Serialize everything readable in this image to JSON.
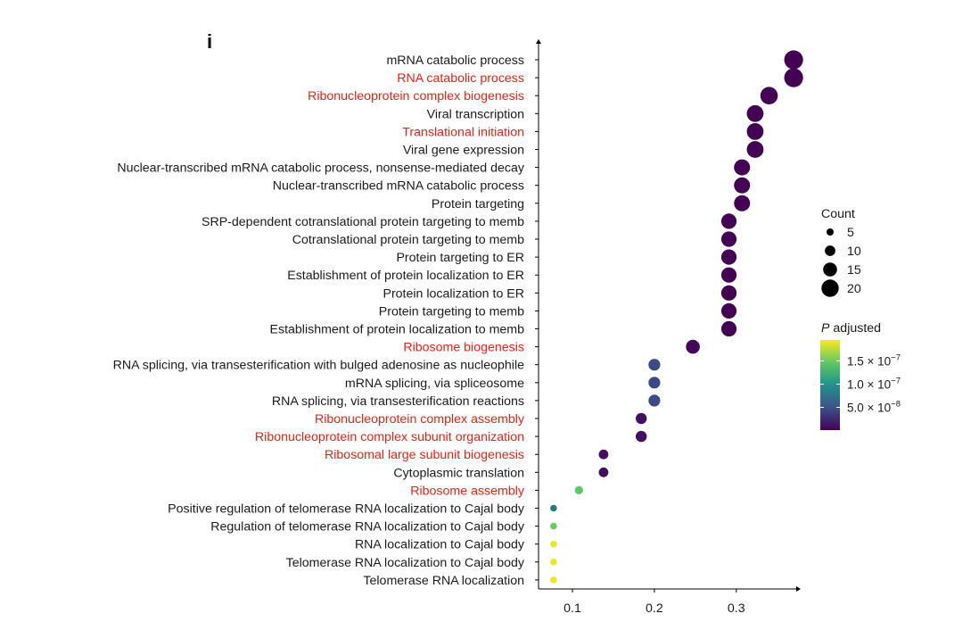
{
  "panel_label": "i",
  "chart_data": {
    "type": "scatter",
    "title": "",
    "xlabel": "",
    "ylabel": "",
    "xlim": [
      0.065,
      0.39
    ],
    "xticks": [
      0.1,
      0.2,
      0.3
    ],
    "xtick_labels": [
      "0.1",
      "0.2",
      "0.3"
    ],
    "highlight_color": "#e2231a",
    "default_label_color": "#1a1a1a",
    "terms": [
      {
        "label": "mRNA catabolic process",
        "ratio": 0.37,
        "count": 21,
        "padj": 1e-09,
        "highlight": false
      },
      {
        "label": "RNA catabolic process",
        "ratio": 0.37,
        "count": 21,
        "padj": 1e-09,
        "highlight": true
      },
      {
        "label": "Ribonucleoprotein complex biogenesis",
        "ratio": 0.34,
        "count": 19,
        "padj": 2e-09,
        "highlight": true
      },
      {
        "label": "Viral transcription",
        "ratio": 0.323,
        "count": 18,
        "padj": 1e-09,
        "highlight": false
      },
      {
        "label": "Translational initiation",
        "ratio": 0.323,
        "count": 18,
        "padj": 1e-09,
        "highlight": true
      },
      {
        "label": "Viral gene expression",
        "ratio": 0.323,
        "count": 18,
        "padj": 1e-09,
        "highlight": false
      },
      {
        "label": "Nuclear-transcribed mRNA catabolic process, nonsense-mediated decay",
        "ratio": 0.307,
        "count": 17,
        "padj": 1e-09,
        "highlight": false
      },
      {
        "label": "Nuclear-transcribed mRNA catabolic process",
        "ratio": 0.307,
        "count": 17,
        "padj": 1e-09,
        "highlight": false
      },
      {
        "label": "Protein targeting",
        "ratio": 0.307,
        "count": 17,
        "padj": 1e-09,
        "highlight": false
      },
      {
        "label": "SRP-dependent cotranslational protein targeting to memb",
        "ratio": 0.291,
        "count": 16,
        "padj": 1e-09,
        "highlight": false
      },
      {
        "label": "Cotranslational protein targeting to memb",
        "ratio": 0.291,
        "count": 16,
        "padj": 1e-09,
        "highlight": false
      },
      {
        "label": "Protein targeting to ER",
        "ratio": 0.291,
        "count": 16,
        "padj": 1e-09,
        "highlight": false
      },
      {
        "label": "Establishment of protein localization to ER",
        "ratio": 0.291,
        "count": 16,
        "padj": 1e-09,
        "highlight": false
      },
      {
        "label": "Protein localization to ER",
        "ratio": 0.291,
        "count": 16,
        "padj": 1e-09,
        "highlight": false
      },
      {
        "label": "Protein targeting to memb",
        "ratio": 0.291,
        "count": 16,
        "padj": 1e-09,
        "highlight": false
      },
      {
        "label": "Establishment of protein localization to memb",
        "ratio": 0.291,
        "count": 16,
        "padj": 1e-09,
        "highlight": false
      },
      {
        "label": "Ribosome biogenesis",
        "ratio": 0.247,
        "count": 14,
        "padj": 5e-09,
        "highlight": true
      },
      {
        "label": "RNA splicing, via transesterification with bulged adenosine as nucleophile",
        "ratio": 0.2,
        "count": 11,
        "padj": 4.5e-08,
        "highlight": false
      },
      {
        "label": "mRNA splicing, via spliceosome",
        "ratio": 0.2,
        "count": 11,
        "padj": 4.5e-08,
        "highlight": false
      },
      {
        "label": "RNA splicing, via transesterification reactions",
        "ratio": 0.2,
        "count": 11,
        "padj": 4.5e-08,
        "highlight": false
      },
      {
        "label": "Ribonucleoprotein complex assembly",
        "ratio": 0.184,
        "count": 10,
        "padj": 1e-08,
        "highlight": true
      },
      {
        "label": "Ribonucleoprotein complex subunit organization",
        "ratio": 0.184,
        "count": 10,
        "padj": 1e-08,
        "highlight": true
      },
      {
        "label": "Ribosomal large subunit biogenesis",
        "ratio": 0.138,
        "count": 8,
        "padj": 1e-08,
        "highlight": true
      },
      {
        "label": "Cytoplasmic translation",
        "ratio": 0.138,
        "count": 8,
        "padj": 1e-08,
        "highlight": false
      },
      {
        "label": "Ribosome assembly",
        "ratio": 0.108,
        "count": 6,
        "padj": 1.45e-07,
        "highlight": true
      },
      {
        "label": "Positive regulation of telomerase RNA localization to Cajal body",
        "ratio": 0.077,
        "count": 4,
        "padj": 8e-08,
        "highlight": false
      },
      {
        "label": "Regulation of telomerase RNA localization to Cajal body",
        "ratio": 0.077,
        "count": 4,
        "padj": 1.5e-07,
        "highlight": false
      },
      {
        "label": "RNA localization to Cajal body",
        "ratio": 0.077,
        "count": 4,
        "padj": 1.9e-07,
        "highlight": false
      },
      {
        "label": "Telomerase RNA localization to Cajal body",
        "ratio": 0.077,
        "count": 4,
        "padj": 1.9e-07,
        "highlight": false
      },
      {
        "label": "Telomerase RNA localization",
        "ratio": 0.077,
        "count": 4,
        "padj": 1.9e-07,
        "highlight": false
      }
    ],
    "size_legend": {
      "title": "Count",
      "counts": [
        5,
        10,
        15,
        20
      ],
      "labels": [
        "5",
        "10",
        "15",
        "20"
      ]
    },
    "color_legend": {
      "title_italic": "P",
      "title_rest": " adjusted",
      "range": [
        1e-09,
        1.95e-07
      ],
      "ticks": [
        1.5e-07,
        1e-07,
        5e-08
      ],
      "tick_mantissas": [
        "1.5",
        "1.0",
        "5.0"
      ],
      "tick_times": " × 10",
      "tick_exponents": [
        "−7",
        "−7",
        "−8"
      ],
      "colormap": [
        "#440154",
        "#3b528b",
        "#21918c",
        "#5ec962",
        "#fde725"
      ]
    }
  }
}
